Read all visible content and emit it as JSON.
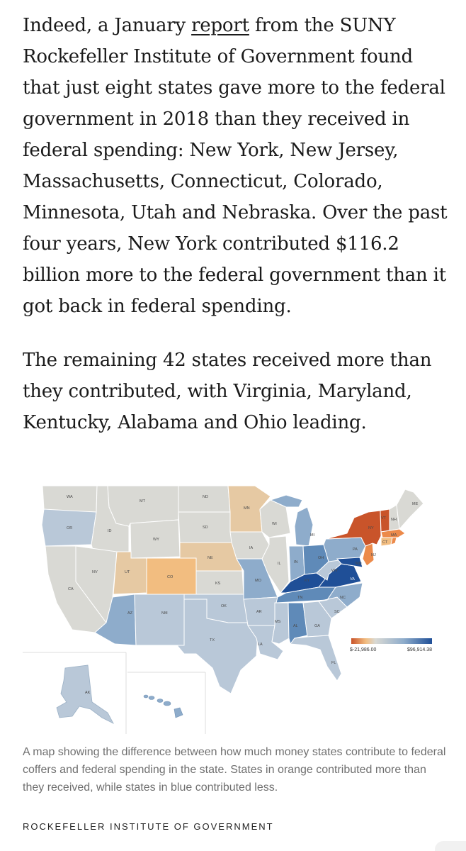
{
  "article": {
    "p1_before_link": "Indeed, a January ",
    "p1_link": "report",
    "p1_after_link": " from the SUNY Rockefeller Institute of Government found that just eight states gave more to the federal government in 2018 than they received in federal spending: New York, New Jersey, Massachusetts, Connecticut, Colorado, Minnesota, Utah and Nebraska. Over the past four years, New York contributed $116.2 billion more to the federal government than it got back in federal spending.",
    "p2": "The remaining 42 states received more than they contributed, with Virginia, Maryland, Kentucky, Alabama and Ohio leading."
  },
  "map": {
    "legend_min": "$-21,986.00",
    "legend_max": "$96,914.38",
    "colors": {
      "orange_dark": "#c9542a",
      "orange": "#ec8a4a",
      "orange_light": "#f2bd80",
      "tan": "#e6c9a3",
      "neutral": "#d9d9d4",
      "blue_light": "#b9c8d8",
      "blue_mid": "#8eaccb",
      "blue": "#5f8ab8",
      "blue_dark": "#1f4f97"
    },
    "state_labels": [
      "WA",
      "OR",
      "CA",
      "ID",
      "NV",
      "MT",
      "WY",
      "UT",
      "AZ",
      "CO",
      "NM",
      "ND",
      "SD",
      "NE",
      "KS",
      "OK",
      "TX",
      "MN",
      "IA",
      "MO",
      "AR",
      "LA",
      "WI",
      "IL",
      "MI",
      "IN",
      "OH",
      "KY",
      "TN",
      "MS",
      "AL",
      "GA",
      "FL",
      "SC",
      "NC",
      "VA",
      "WV",
      "PA",
      "NY",
      "VT",
      "NH",
      "ME",
      "MA",
      "CT",
      "NJ",
      "MD",
      "AK"
    ]
  },
  "caption": "A map showing the difference between how much money states contribute to federal coffers and federal spending in the state. States in orange contributed more than they received, while states in blue contributed less.",
  "credit": "Rockefeller Institute of Government"
}
